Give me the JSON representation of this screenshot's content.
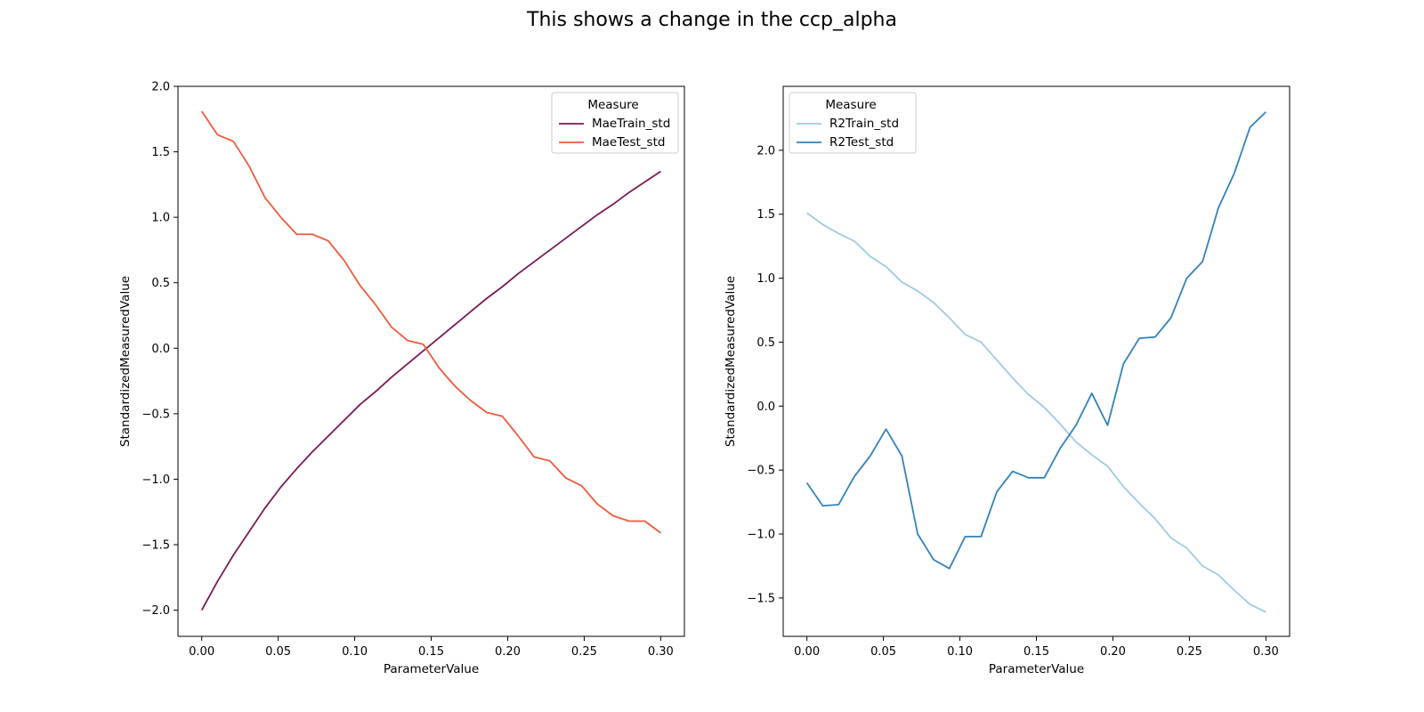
{
  "figure": {
    "title": "This shows a change in the ccp_alpha"
  },
  "chart_data": [
    {
      "type": "line",
      "xlabel": "ParameterValue",
      "ylabel": "StandardizedMeasuredValue",
      "xlim": [
        -0.0155,
        0.3155
      ],
      "ylim": [
        -2.2,
        2.0
      ],
      "xticks": [
        "0.00",
        "0.05",
        "0.10",
        "0.15",
        "0.20",
        "0.25",
        "0.30"
      ],
      "yticks": [
        "2.0",
        "1.5",
        "1.0",
        "0.5",
        "0.0",
        "−0.5",
        "−1.0",
        "−1.5",
        "−2.0"
      ],
      "legend": {
        "title": "Measure",
        "position": "top-right"
      },
      "x": [
        0.0,
        0.01034,
        0.02069,
        0.03103,
        0.04138,
        0.05172,
        0.06207,
        0.07241,
        0.08276,
        0.0931,
        0.10345,
        0.11379,
        0.12414,
        0.13448,
        0.14483,
        0.15517,
        0.16552,
        0.17586,
        0.18621,
        0.19655,
        0.2069,
        0.21724,
        0.22759,
        0.23793,
        0.24828,
        0.25862,
        0.26897,
        0.27931,
        0.28966,
        0.3
      ],
      "series": [
        {
          "name": "MaeTrain_std",
          "color": "#7b1a55",
          "values": [
            -2.0,
            -1.78,
            -1.58,
            -1.4,
            -1.22,
            -1.06,
            -0.92,
            -0.79,
            -0.67,
            -0.55,
            -0.43,
            -0.33,
            -0.22,
            -0.12,
            -0.02,
            0.08,
            0.18,
            0.28,
            0.38,
            0.47,
            0.57,
            0.66,
            0.75,
            0.84,
            0.93,
            1.02,
            1.1,
            1.19,
            1.27,
            1.35
          ]
        },
        {
          "name": "MaeTest_std",
          "color": "#ef5a3c",
          "values": [
            1.81,
            1.63,
            1.58,
            1.39,
            1.15,
            1.0,
            0.87,
            0.87,
            0.82,
            0.67,
            0.48,
            0.33,
            0.16,
            0.06,
            0.03,
            -0.15,
            -0.29,
            -0.4,
            -0.49,
            -0.52,
            -0.67,
            -0.83,
            -0.86,
            -0.99,
            -1.05,
            -1.19,
            -1.28,
            -1.32,
            -1.32,
            -1.41
          ]
        }
      ]
    },
    {
      "type": "line",
      "xlabel": "ParameterValue",
      "ylabel": "StandardizedMeasuredValue",
      "xlim": [
        -0.0155,
        0.3155
      ],
      "ylim": [
        -1.8,
        2.5
      ],
      "xticks": [
        "0.00",
        "0.05",
        "0.10",
        "0.15",
        "0.20",
        "0.25",
        "0.30"
      ],
      "yticks": [
        "2.0",
        "1.5",
        "1.0",
        "0.5",
        "0.0",
        "−0.5",
        "−1.0",
        "−1.5"
      ],
      "legend": {
        "title": "Measure",
        "position": "top-left"
      },
      "x": [
        0.0,
        0.01034,
        0.02069,
        0.03103,
        0.04138,
        0.05172,
        0.06207,
        0.07241,
        0.08276,
        0.0931,
        0.10345,
        0.11379,
        0.12414,
        0.13448,
        0.14483,
        0.15517,
        0.16552,
        0.17586,
        0.18621,
        0.19655,
        0.2069,
        0.21724,
        0.22759,
        0.23793,
        0.24828,
        0.25862,
        0.26897,
        0.27931,
        0.28966,
        0.3
      ],
      "series": [
        {
          "name": "R2Train_std",
          "color": "#9ecae1",
          "values": [
            1.51,
            1.42,
            1.35,
            1.29,
            1.17,
            1.09,
            0.97,
            0.9,
            0.81,
            0.69,
            0.56,
            0.5,
            0.36,
            0.22,
            0.09,
            -0.01,
            -0.14,
            -0.28,
            -0.38,
            -0.47,
            -0.63,
            -0.76,
            -0.88,
            -1.03,
            -1.11,
            -1.25,
            -1.32,
            -1.44,
            -1.55,
            -1.61
          ]
        },
        {
          "name": "R2Test_std",
          "color": "#3182bd",
          "values": [
            -0.6,
            -0.78,
            -0.77,
            -0.55,
            -0.39,
            -0.18,
            -0.39,
            -1.0,
            -1.2,
            -1.27,
            -1.02,
            -1.02,
            -0.67,
            -0.51,
            -0.56,
            -0.56,
            -0.33,
            -0.15,
            0.1,
            -0.15,
            0.33,
            0.53,
            0.54,
            0.69,
            1.0,
            1.13,
            1.55,
            1.82,
            2.18,
            2.3
          ]
        }
      ]
    }
  ]
}
